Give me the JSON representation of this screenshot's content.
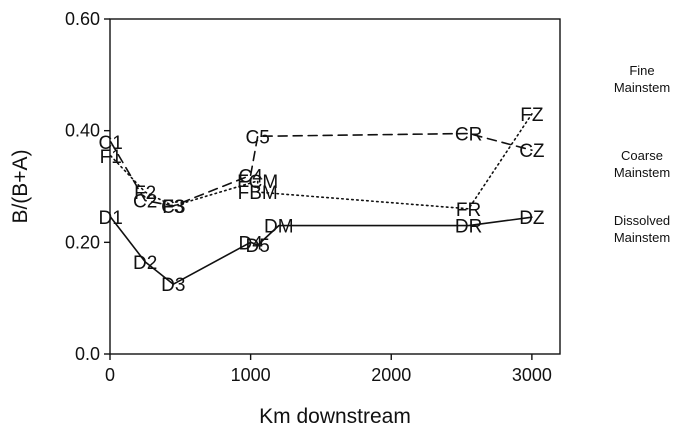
{
  "chart_data": {
    "type": "line",
    "xlabel": "Km downstream",
    "ylabel": "B/(B+A)",
    "xlim": [
      0,
      3200
    ],
    "ylim": [
      0.0,
      0.6
    ],
    "x_ticks": [
      {
        "value": 0,
        "label": "0"
      },
      {
        "value": 1000,
        "label": "1000"
      },
      {
        "value": 2000,
        "label": "2000"
      },
      {
        "value": 3000,
        "label": "3000"
      }
    ],
    "y_ticks": [
      {
        "value": 0.0,
        "label": "0.0"
      },
      {
        "value": 0.2,
        "label": "0.20"
      },
      {
        "value": 0.4,
        "label": "0.40"
      },
      {
        "value": 0.6,
        "label": "0.60"
      }
    ],
    "grid": false,
    "legend_position": "right",
    "series": [
      {
        "name": "Fine Mainstem",
        "legend_label": [
          "Fine",
          "Mainstem"
        ],
        "line_style": "dotted",
        "color": "#111111",
        "points": [
          {
            "label": "F1",
            "x": 5,
            "y": 0.355
          },
          {
            "label": "F2",
            "x": 250,
            "y": 0.29
          },
          {
            "label": "F3",
            "x": 450,
            "y": 0.265
          },
          {
            "label": "FCM",
            "x": 1050,
            "y": 0.31
          },
          {
            "label": "FBM",
            "x": 1050,
            "y": 0.29
          },
          {
            "label": "FR",
            "x": 2550,
            "y": 0.26
          },
          {
            "label": "FZ",
            "x": 3000,
            "y": 0.43
          }
        ]
      },
      {
        "name": "Coarse Mainstem",
        "legend_label": [
          "Coarse",
          "Mainstem"
        ],
        "line_style": "dashed",
        "color": "#111111",
        "points": [
          {
            "label": "C1",
            "x": 5,
            "y": 0.38
          },
          {
            "label": "C2",
            "x": 250,
            "y": 0.275
          },
          {
            "label": "C3",
            "x": 450,
            "y": 0.265
          },
          {
            "label": "C4",
            "x": 1000,
            "y": 0.32
          },
          {
            "label": "C5",
            "x": 1050,
            "y": 0.39
          },
          {
            "label": "CR",
            "x": 2550,
            "y": 0.395
          },
          {
            "label": "CZ",
            "x": 3000,
            "y": 0.365
          }
        ]
      },
      {
        "name": "Dissolved Mainstem",
        "legend_label": [
          "Dissolved",
          "Mainstem"
        ],
        "line_style": "solid",
        "color": "#111111",
        "points": [
          {
            "label": "D1",
            "x": 5,
            "y": 0.245
          },
          {
            "label": "D2",
            "x": 250,
            "y": 0.165
          },
          {
            "label": "D3",
            "x": 450,
            "y": 0.125
          },
          {
            "label": "D4",
            "x": 1000,
            "y": 0.2
          },
          {
            "label": "D5",
            "x": 1050,
            "y": 0.195
          },
          {
            "label": "DM",
            "x": 1200,
            "y": 0.23
          },
          {
            "label": "DR",
            "x": 2550,
            "y": 0.23
          },
          {
            "label": "DZ",
            "x": 3000,
            "y": 0.245
          }
        ]
      }
    ]
  }
}
